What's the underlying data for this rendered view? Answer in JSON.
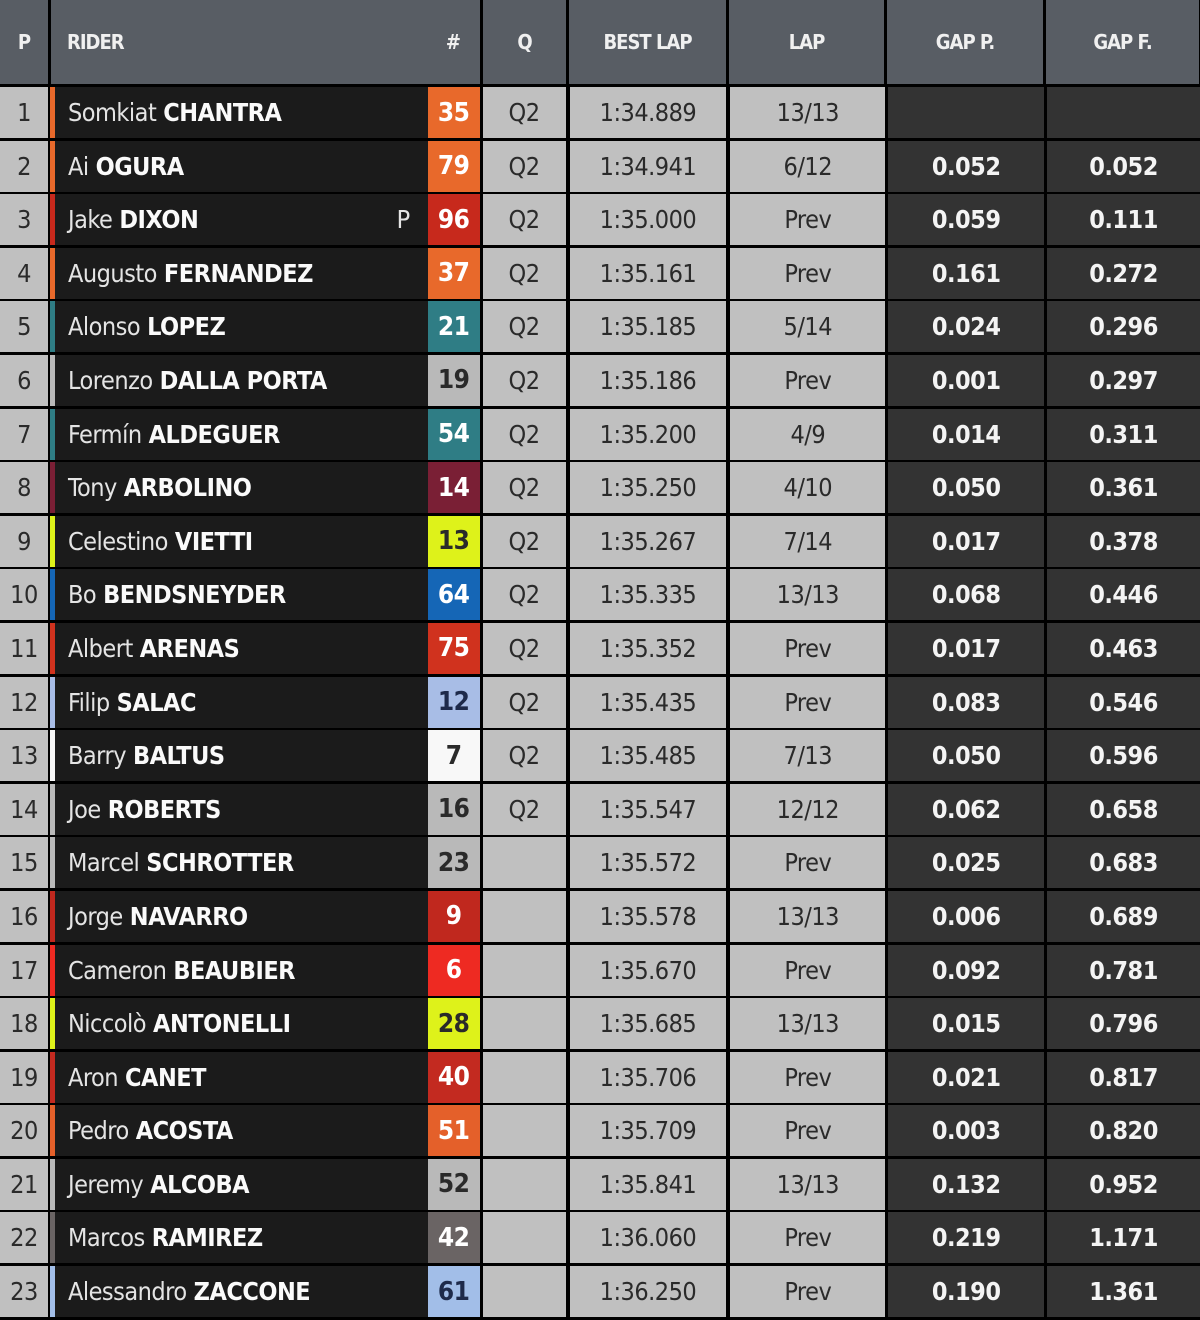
{
  "headers": {
    "p": "P",
    "rider": "RIDER",
    "num": "#",
    "q": "Q",
    "best_lap": "BEST LAP",
    "lap": "LAP",
    "gap_p": "GAP P.",
    "gap_f": "GAP F."
  },
  "rows": [
    {
      "pos": "1",
      "first": "Somkiat",
      "last": "CHANTRA",
      "tag": "",
      "num": "35",
      "color": "#e8692b",
      "text": "#ffffff",
      "q": "Q2",
      "best": "1:34.889",
      "lap": "13/13",
      "gap_p": "",
      "gap_f": ""
    },
    {
      "pos": "2",
      "first": "Ai",
      "last": "OGURA",
      "tag": "",
      "num": "79",
      "color": "#e8692b",
      "text": "#ffffff",
      "q": "Q2",
      "best": "1:34.941",
      "lap": "6/12",
      "gap_p": "0.052",
      "gap_f": "0.052"
    },
    {
      "pos": "3",
      "first": "Jake",
      "last": "DIXON",
      "tag": "P",
      "num": "96",
      "color": "#c7291c",
      "text": "#ffffff",
      "q": "Q2",
      "best": "1:35.000",
      "lap": "Prev",
      "gap_p": "0.059",
      "gap_f": "0.111"
    },
    {
      "pos": "4",
      "first": "Augusto",
      "last": "FERNANDEZ",
      "tag": "",
      "num": "37",
      "color": "#e8692b",
      "text": "#ffffff",
      "q": "Q2",
      "best": "1:35.161",
      "lap": "Prev",
      "gap_p": "0.161",
      "gap_f": "0.272"
    },
    {
      "pos": "5",
      "first": "Alonso",
      "last": "LOPEZ",
      "tag": "",
      "num": "21",
      "color": "#2f7d85",
      "text": "#ffffff",
      "q": "Q2",
      "best": "1:35.185",
      "lap": "5/14",
      "gap_p": "0.024",
      "gap_f": "0.296"
    },
    {
      "pos": "6",
      "first": "Lorenzo",
      "last": "DALLA PORTA",
      "tag": "",
      "num": "19",
      "color": "#b9b9b9",
      "text": "#2a2a2a",
      "q": "Q2",
      "best": "1:35.186",
      "lap": "Prev",
      "gap_p": "0.001",
      "gap_f": "0.297"
    },
    {
      "pos": "7",
      "first": "Fermín",
      "last": "ALDEGUER",
      "tag": "",
      "num": "54",
      "color": "#2f7d85",
      "text": "#ffffff",
      "q": "Q2",
      "best": "1:35.200",
      "lap": "4/9",
      "gap_p": "0.014",
      "gap_f": "0.311"
    },
    {
      "pos": "8",
      "first": "Tony",
      "last": "ARBOLINO",
      "tag": "",
      "num": "14",
      "color": "#7a1f35",
      "text": "#ffffff",
      "q": "Q2",
      "best": "1:35.250",
      "lap": "4/10",
      "gap_p": "0.050",
      "gap_f": "0.361"
    },
    {
      "pos": "9",
      "first": "Celestino",
      "last": "VIETTI",
      "tag": "",
      "num": "13",
      "color": "#def21a",
      "text": "#2a2a2a",
      "q": "Q2",
      "best": "1:35.267",
      "lap": "7/14",
      "gap_p": "0.017",
      "gap_f": "0.378"
    },
    {
      "pos": "10",
      "first": "Bo",
      "last": "BENDSNEYDER",
      "tag": "",
      "num": "64",
      "color": "#1566b6",
      "text": "#ffffff",
      "q": "Q2",
      "best": "1:35.335",
      "lap": "13/13",
      "gap_p": "0.068",
      "gap_f": "0.446"
    },
    {
      "pos": "11",
      "first": "Albert",
      "last": "ARENAS",
      "tag": "",
      "num": "75",
      "color": "#d0321e",
      "text": "#ffffff",
      "q": "Q2",
      "best": "1:35.352",
      "lap": "Prev",
      "gap_p": "0.017",
      "gap_f": "0.463"
    },
    {
      "pos": "12",
      "first": "Filip",
      "last": "SALAC",
      "tag": "",
      "num": "12",
      "color": "#a8bde6",
      "text": "#1e2a4a",
      "q": "Q2",
      "best": "1:35.435",
      "lap": "Prev",
      "gap_p": "0.083",
      "gap_f": "0.546"
    },
    {
      "pos": "13",
      "first": "Barry",
      "last": "BALTUS",
      "tag": "",
      "num": "7",
      "color": "#f8f8f8",
      "text": "#2a2a2a",
      "q": "Q2",
      "best": "1:35.485",
      "lap": "7/13",
      "gap_p": "0.050",
      "gap_f": "0.596"
    },
    {
      "pos": "14",
      "first": "Joe",
      "last": "ROBERTS",
      "tag": "",
      "num": "16",
      "color": "#b9b9b9",
      "text": "#2a2a2a",
      "q": "Q2",
      "best": "1:35.547",
      "lap": "12/12",
      "gap_p": "0.062",
      "gap_f": "0.658"
    },
    {
      "pos": "15",
      "first": "Marcel",
      "last": "SCHROTTER",
      "tag": "",
      "num": "23",
      "color": "#b9b9b9",
      "text": "#2a2a2a",
      "q": "",
      "best": "1:35.572",
      "lap": "Prev",
      "gap_p": "0.025",
      "gap_f": "0.683"
    },
    {
      "pos": "16",
      "first": "Jorge",
      "last": "NAVARRO",
      "tag": "",
      "num": "9",
      "color": "#c0281e",
      "text": "#ffffff",
      "q": "",
      "best": "1:35.578",
      "lap": "13/13",
      "gap_p": "0.006",
      "gap_f": "0.689"
    },
    {
      "pos": "17",
      "first": "Cameron",
      "last": "BEAUBIER",
      "tag": "",
      "num": "6",
      "color": "#ee2a22",
      "text": "#ffffff",
      "q": "",
      "best": "1:35.670",
      "lap": "Prev",
      "gap_p": "0.092",
      "gap_f": "0.781"
    },
    {
      "pos": "18",
      "first": "Niccolò",
      "last": "ANTONELLI",
      "tag": "",
      "num": "28",
      "color": "#def21a",
      "text": "#2a2a2a",
      "q": "",
      "best": "1:35.685",
      "lap": "13/13",
      "gap_p": "0.015",
      "gap_f": "0.796"
    },
    {
      "pos": "19",
      "first": "Aron",
      "last": "CANET",
      "tag": "",
      "num": "40",
      "color": "#c32a20",
      "text": "#ffffff",
      "q": "",
      "best": "1:35.706",
      "lap": "Prev",
      "gap_p": "0.021",
      "gap_f": "0.817"
    },
    {
      "pos": "20",
      "first": "Pedro",
      "last": "ACOSTA",
      "tag": "",
      "num": "51",
      "color": "#e4602a",
      "text": "#ffffff",
      "q": "",
      "best": "1:35.709",
      "lap": "Prev",
      "gap_p": "0.003",
      "gap_f": "0.820"
    },
    {
      "pos": "21",
      "first": "Jeremy",
      "last": "ALCOBA",
      "tag": "",
      "num": "52",
      "color": "#b9b9b9",
      "text": "#2a2a2a",
      "q": "",
      "best": "1:35.841",
      "lap": "13/13",
      "gap_p": "0.132",
      "gap_f": "0.952"
    },
    {
      "pos": "22",
      "first": "Marcos",
      "last": "RAMIREZ",
      "tag": "",
      "num": "42",
      "color": "#6a6464",
      "text": "#ffffff",
      "q": "",
      "best": "1:36.060",
      "lap": "Prev",
      "gap_p": "0.219",
      "gap_f": "1.171"
    },
    {
      "pos": "23",
      "first": "Alessandro",
      "last": "ZACCONE",
      "tag": "",
      "num": "61",
      "color": "#a2bee8",
      "text": "#1e2a4a",
      "q": "",
      "best": "1:36.250",
      "lap": "Prev",
      "gap_p": "0.190",
      "gap_f": "1.361"
    }
  ]
}
